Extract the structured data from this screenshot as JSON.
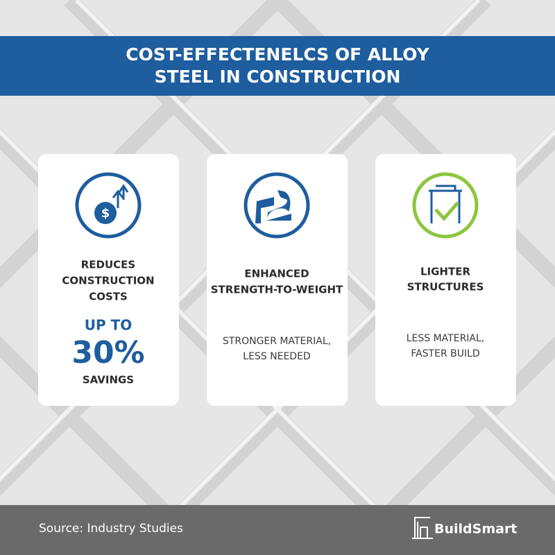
{
  "header": {
    "title_lines": [
      "COST-EFFECTENELCS OF ALLOY",
      "STEEL IN CONSTRUCTION"
    ]
  },
  "cards": [
    {
      "title_lines": [
        "REDUCES",
        "CONSTRUCTION",
        "COSTS"
      ],
      "highlight": {
        "prefix": "UP TO",
        "figure": "30%",
        "suffix": "SAVINGS"
      }
    },
    {
      "title_lines": [
        "ENHANCED",
        "STRENGTH-TO-WEIGHT"
      ],
      "description_lines": [
        "STRONGER MATERIAL,",
        "LESS NEEDED"
      ]
    },
    {
      "title_lines": [
        "LIGHTER",
        "STRUCTURES"
      ],
      "description_lines": [
        "LESS MATERIAL,",
        "FASTER BUILD"
      ]
    }
  ],
  "footer": {
    "source": "Source: Industry Studies",
    "brand": "BuildSmart"
  }
}
